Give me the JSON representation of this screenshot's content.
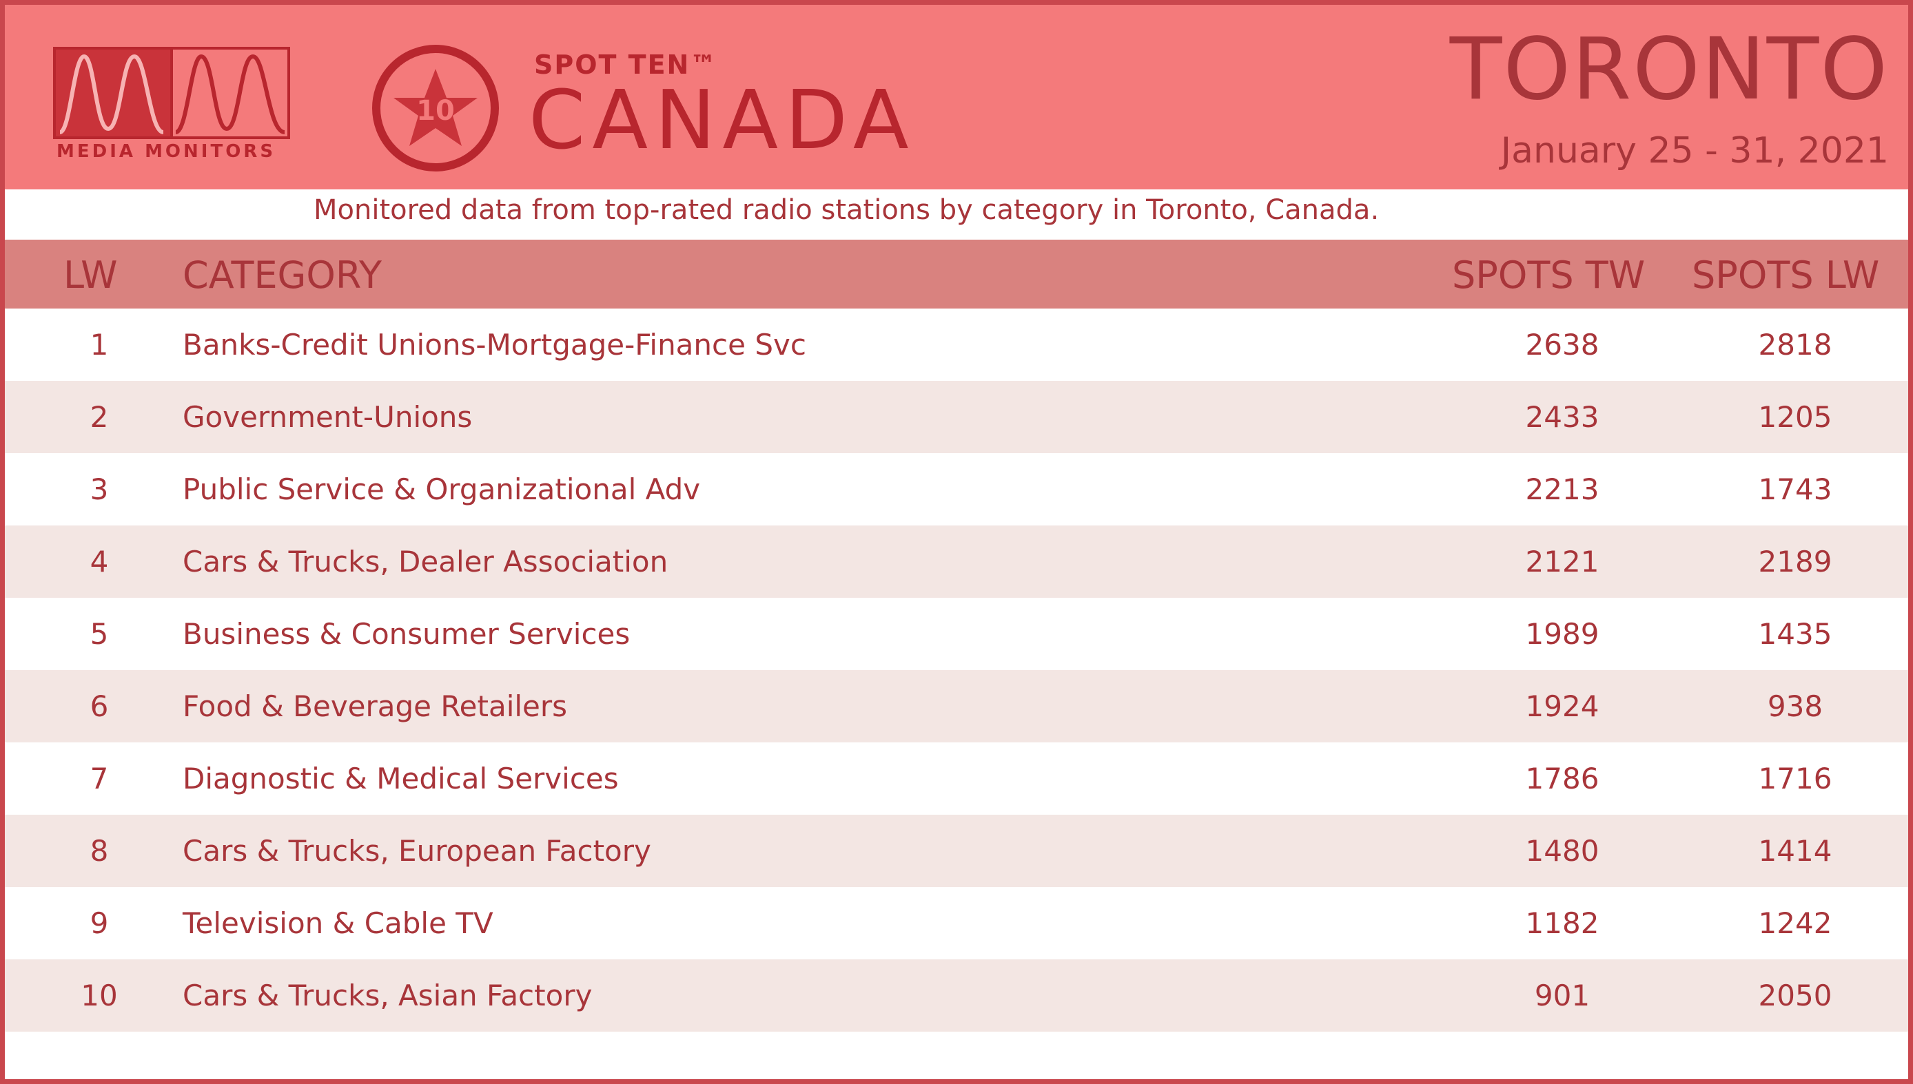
{
  "header": {
    "mm_logo_text": "MEDIA MONITORS",
    "badge_number": "10",
    "spot_ten": "SPOT TEN™",
    "country": "CANADA",
    "city": "TORONTO",
    "dates": "January 25 - 31, 2021",
    "colors": {
      "band": "#f47a7b",
      "text": "#a8353a",
      "logo_red": "#b8262e"
    }
  },
  "subtitle": "Monitored data from top-rated radio stations by category in Toronto, Canada.",
  "table": {
    "columns": {
      "lw": "LW",
      "category": "CATEGORY",
      "spots_tw": "SPOTS TW",
      "spots_lw": "SPOTS LW"
    },
    "rows": [
      {
        "rank": "1",
        "category": "Banks-Credit Unions-Mortgage-Finance Svc",
        "tw": "2638",
        "lw": "2818"
      },
      {
        "rank": "2",
        "category": "Government-Unions",
        "tw": "2433",
        "lw": "1205"
      },
      {
        "rank": "3",
        "category": "Public Service & Organizational Adv",
        "tw": "2213",
        "lw": "1743"
      },
      {
        "rank": "4",
        "category": "Cars & Trucks, Dealer Association",
        "tw": "2121",
        "lw": "2189"
      },
      {
        "rank": "5",
        "category": "Business & Consumer Services",
        "tw": "1989",
        "lw": "1435"
      },
      {
        "rank": "6",
        "category": "Food & Beverage Retailers",
        "tw": "1924",
        "lw": "938"
      },
      {
        "rank": "7",
        "category": "Diagnostic & Medical Services",
        "tw": "1786",
        "lw": "1716"
      },
      {
        "rank": "8",
        "category": "Cars & Trucks, European Factory",
        "tw": "1480",
        "lw": "1414"
      },
      {
        "rank": "9",
        "category": "Television & Cable TV",
        "tw": "1182",
        "lw": "1242"
      },
      {
        "rank": "10",
        "category": "Cars & Trucks, Asian Factory",
        "tw": "901",
        "lw": "2050"
      }
    ]
  }
}
